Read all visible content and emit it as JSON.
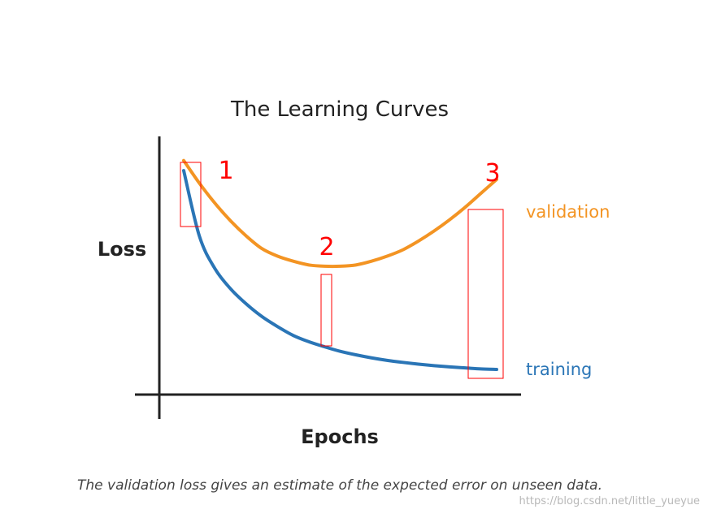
{
  "chart_data": {
    "type": "line",
    "title": "The Learning Curves",
    "xlabel": "Epochs",
    "ylabel": "Loss",
    "grid": false,
    "legend": "inline-right",
    "series": [
      {
        "name": "validation",
        "color": "#f39423",
        "x": [
          0.0,
          0.05,
          0.1,
          0.15,
          0.2,
          0.25,
          0.3,
          0.35,
          0.4,
          0.45,
          0.5,
          0.55,
          0.6,
          0.65,
          0.7,
          0.75,
          0.8,
          0.85,
          0.9,
          0.95,
          1.0
        ],
        "y": [
          0.93,
          0.84,
          0.76,
          0.69,
          0.63,
          0.58,
          0.55,
          0.53,
          0.515,
          0.51,
          0.51,
          0.515,
          0.53,
          0.55,
          0.575,
          0.61,
          0.65,
          0.695,
          0.745,
          0.8,
          0.855
        ]
      },
      {
        "name": "training",
        "color": "#2a75b6",
        "x": [
          0.0,
          0.05,
          0.1,
          0.15,
          0.2,
          0.25,
          0.3,
          0.35,
          0.4,
          0.45,
          0.5,
          0.55,
          0.6,
          0.65,
          0.7,
          0.75,
          0.8,
          0.85,
          0.9,
          0.95,
          1.0
        ],
        "y": [
          0.89,
          0.63,
          0.5,
          0.42,
          0.36,
          0.31,
          0.27,
          0.235,
          0.21,
          0.19,
          0.172,
          0.158,
          0.146,
          0.136,
          0.128,
          0.121,
          0.115,
          0.11,
          0.106,
          0.102,
          0.1
        ]
      }
    ],
    "annotations": [
      {
        "label": "1",
        "color": "#ff0000"
      },
      {
        "label": "2",
        "color": "#ff0000"
      },
      {
        "label": "3",
        "color": "#ff0000"
      }
    ]
  },
  "caption": "The validation loss gives an estimate of the expected error on unseen data.",
  "watermark": "https://blog.csdn.net/little_yueyue"
}
